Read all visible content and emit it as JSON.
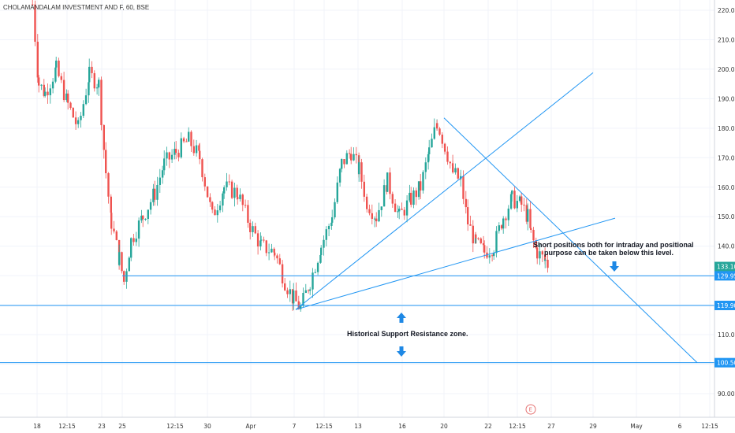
{
  "header": {
    "title": "CHOLAMANDALAM INVESTMENT AND F, 60, BSE"
  },
  "chart_data": {
    "type": "candlestick",
    "ylim": [
      85,
      224
    ],
    "y_ticks": [
      90,
      100,
      110,
      120,
      130,
      140,
      150,
      160,
      170,
      180,
      190,
      200,
      210,
      220
    ],
    "y_tick_labels": [
      "90.00",
      "100.00",
      "110.00",
      "120.00",
      "130.00",
      "140.00",
      "150.00",
      "160.00",
      "170.00",
      "180.00",
      "190.00",
      "200.00",
      "210.00",
      "220.00"
    ],
    "x_ticks": [
      "18",
      "12:15",
      "23",
      "25",
      "12:15",
      "30",
      "Apr",
      "7",
      "12:15",
      "13",
      "16",
      "20",
      "22",
      "12:15",
      "27",
      "29",
      "May",
      "6",
      "12:15"
    ],
    "price_badges": [
      {
        "label": "133.10",
        "value": 133.1,
        "color": "#26a69a"
      },
      {
        "label": "129.95",
        "value": 129.95,
        "color": "#2196f3"
      },
      {
        "label": "119.90",
        "value": 119.9,
        "color": "#2196f3"
      },
      {
        "label": "100.50",
        "value": 100.5,
        "color": "#2196f3"
      }
    ],
    "horizontal_levels": [
      129.95,
      119.9,
      100.5
    ],
    "annotations": [
      {
        "text": "Short positions both for intraday and positional",
        "id": "note1"
      },
      {
        "text": "purpose can be taken below this level.",
        "id": "note2"
      },
      {
        "text": "Historical Support Resistance zone.",
        "id": "note3"
      }
    ],
    "earnings_marker": "E",
    "colors": {
      "up": "#26a69a",
      "down": "#ef5350",
      "line": "#2196f3"
    }
  }
}
